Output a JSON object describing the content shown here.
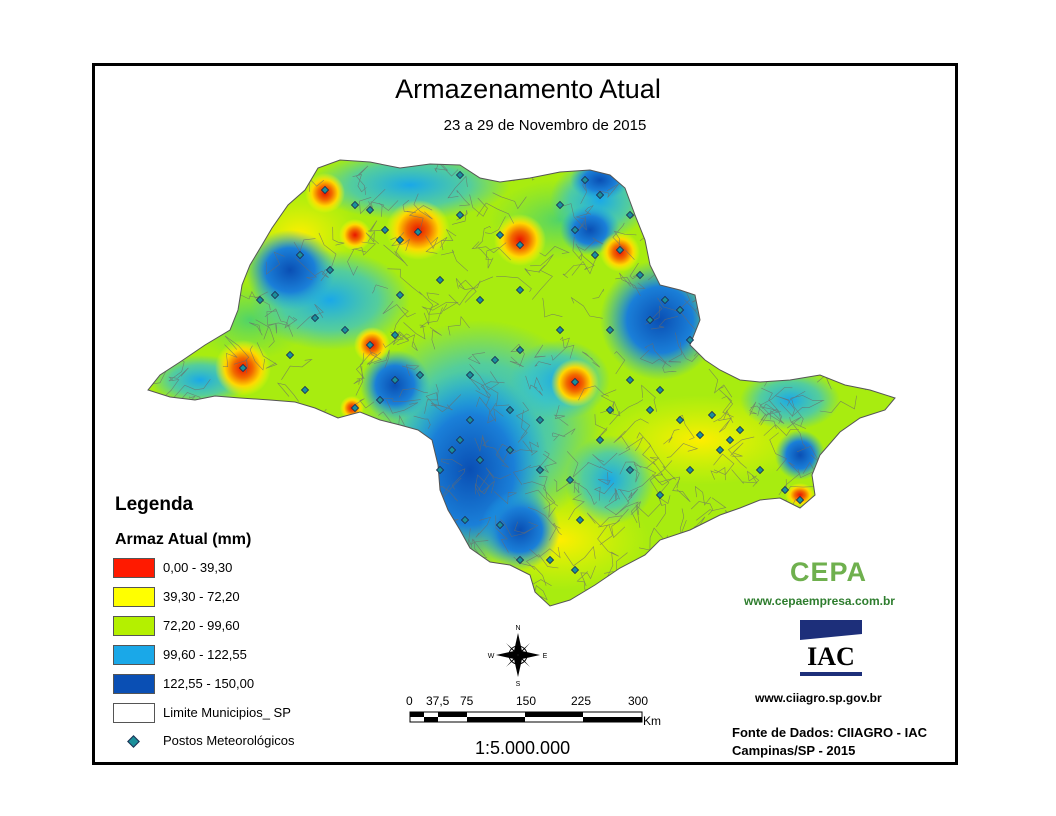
{
  "title": "Armazenamento Atual",
  "subtitle": "23 a 29 de Novembro de 2015",
  "legend": {
    "heading": "Legenda",
    "subheading": "Armaz Atual (mm)",
    "classes": [
      {
        "label": "0,00 - 39,30",
        "color": "#ff1a00"
      },
      {
        "label": "39,30 - 72,20",
        "color": "#ffff00"
      },
      {
        "label": "72,20 - 99,60",
        "color": "#b4f000"
      },
      {
        "label": "99,60 - 122,55",
        "color": "#1aa8e8"
      },
      {
        "label": "122,55 - 150,00",
        "color": "#0a4fb4"
      }
    ],
    "municipal_label": "Limite Municipios_ SP",
    "stations_label": "Postos Meteorológicos"
  },
  "north_arrow": {
    "n": "N",
    "s": "S",
    "e": "E",
    "w": "W"
  },
  "scale_bar": {
    "ticks": [
      "0",
      "37,5",
      "75",
      "150",
      "225",
      "300"
    ],
    "unit": "Km",
    "ratio": "1:5.000.000"
  },
  "credits": {
    "cepa_logo": "CEPA",
    "cepa_url": "www.cepaempresa.com.br",
    "iac_logo": "IAC",
    "iac_url": "www.ciiagro.sp.gov.br",
    "source_line1": "Fonte de Dados: CIIAGRO - IAC",
    "source_line2": "Campinas/SP - 2015"
  }
}
